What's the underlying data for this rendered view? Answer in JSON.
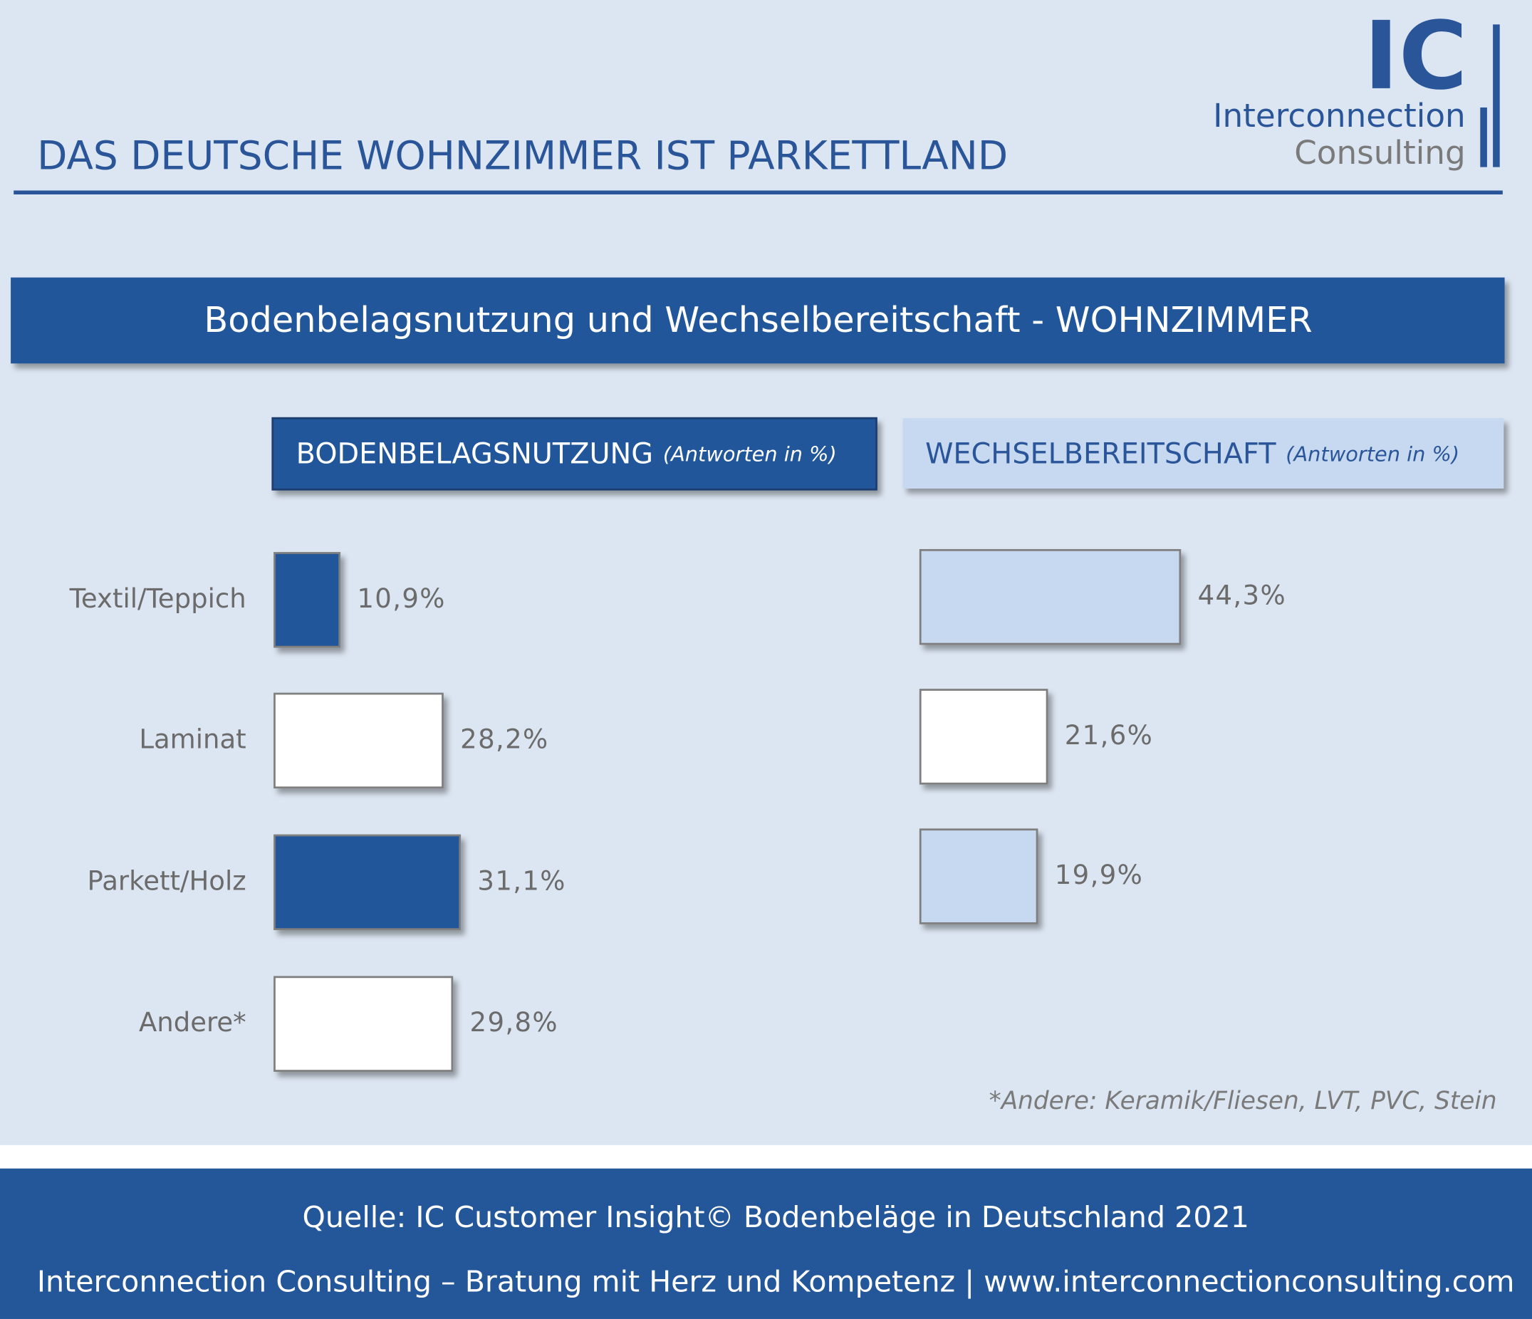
{
  "header": {
    "title": "DAS DEUTSCHE WOHNZIMMER IST PARKETTLAND"
  },
  "logo": {
    "mark": "IC",
    "line1": "Interconnection",
    "line2": "Consulting"
  },
  "banner": "Bodenbelagsnutzung und Wechselbereitschaft - WOHNZIMMER",
  "chart_data": [
    {
      "type": "bar",
      "title": "BODENBELAGSNUTZUNG",
      "subtitle": "(Antworten in %)",
      "categories": [
        "Textil/Teppich",
        "Laminat",
        "Parkett/Holz",
        "Andere*"
      ],
      "values": [
        10.9,
        28.2,
        31.1,
        29.8
      ],
      "value_labels": [
        "10,9%",
        "28,2%",
        "31,1%",
        "29,8%"
      ],
      "colors": [
        "#24569a",
        "#ffffff",
        "#24569a",
        "#ffffff"
      ]
    },
    {
      "type": "bar",
      "title": "WECHSELBEREITSCHAFT",
      "subtitle": "(Antworten in %)",
      "values": [
        44.3,
        21.6,
        19.9
      ],
      "value_labels": [
        "44,3%",
        "21,6%",
        "19,9%"
      ],
      "colors": [
        "#c6d9f0",
        "#ffffff",
        "#c6d9f0"
      ]
    }
  ],
  "footnote": "*Andere: Keramik/Fliesen, LVT, PVC, Stein",
  "footer": {
    "source": "Quelle: IC Customer Insight© Bodenbeläge in Deutschland 2021",
    "tagline": "Interconnection Consulting – Bratung mit Herz und Kompetenz | www.interconnectionconsulting.com"
  }
}
